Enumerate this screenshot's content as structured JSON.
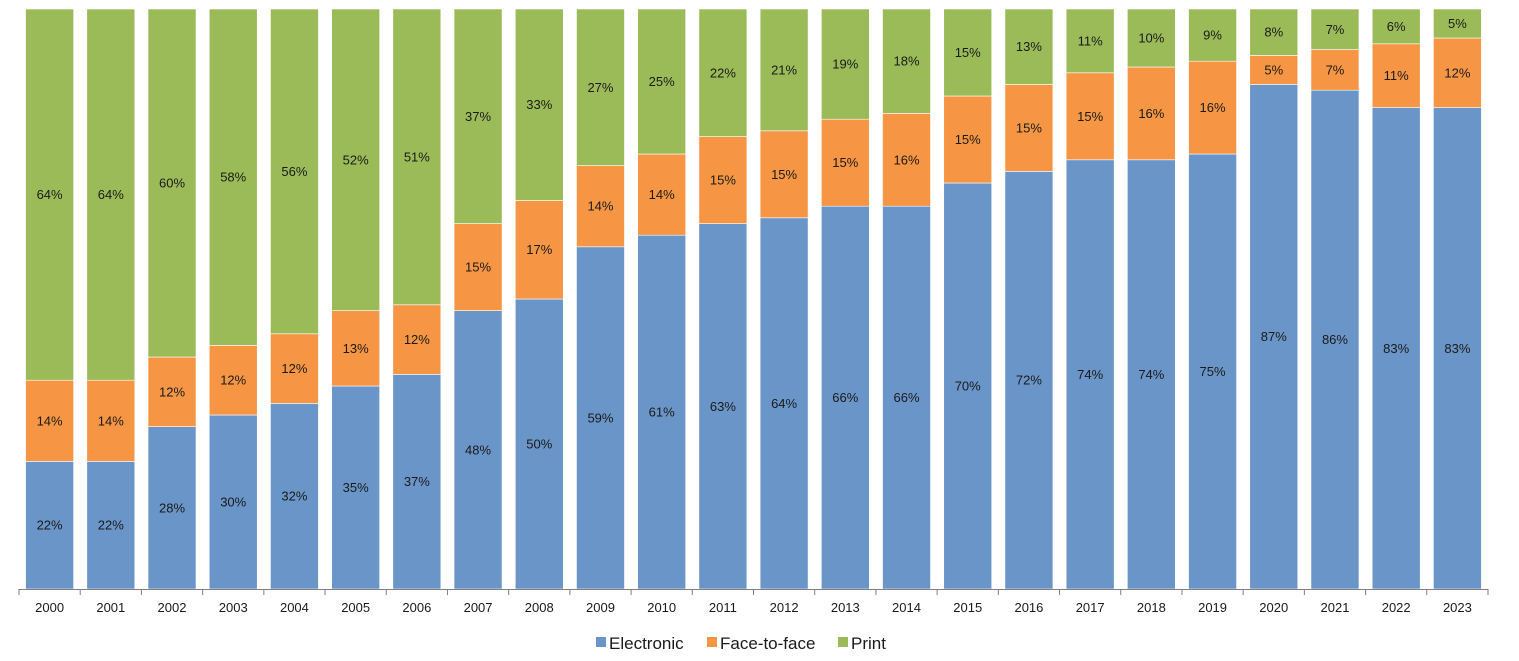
{
  "chart_data": {
    "type": "bar",
    "stacked": true,
    "normalized": true,
    "title": "",
    "xlabel": "",
    "ylabel": "",
    "ylim": [
      0,
      100
    ],
    "grid": false,
    "legend_position": "bottom-center",
    "categories": [
      "2000",
      "2001",
      "2002",
      "2003",
      "2004",
      "2005",
      "2006",
      "2007",
      "2008",
      "2009",
      "2010",
      "2011",
      "2012",
      "2013",
      "2014",
      "2015",
      "2016",
      "2017",
      "2018",
      "2019",
      "2020",
      "2021",
      "2022",
      "2023"
    ],
    "series": [
      {
        "name": "Electronic",
        "color": "#6a95c8",
        "values": [
          22,
          22,
          28,
          30,
          32,
          35,
          37,
          48,
          50,
          59,
          61,
          63,
          64,
          66,
          66,
          70,
          72,
          74,
          74,
          75,
          87,
          86,
          83,
          83
        ]
      },
      {
        "name": "Face-to-face",
        "color": "#f69544",
        "values": [
          14,
          14,
          12,
          12,
          12,
          13,
          12,
          15,
          17,
          14,
          14,
          15,
          15,
          15,
          16,
          15,
          15,
          15,
          16,
          16,
          5,
          7,
          11,
          12
        ]
      },
      {
        "name": "Print",
        "color": "#9bbb59",
        "values": [
          64,
          64,
          60,
          58,
          56,
          52,
          51,
          37,
          33,
          27,
          25,
          22,
          21,
          19,
          18,
          15,
          13,
          11,
          10,
          9,
          8,
          7,
          6,
          5
        ]
      }
    ],
    "value_suffix": "%"
  }
}
